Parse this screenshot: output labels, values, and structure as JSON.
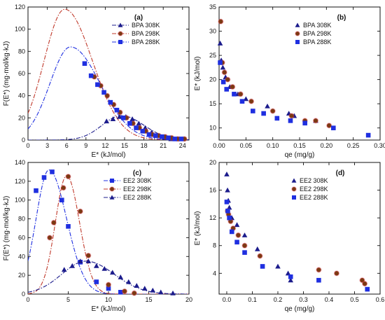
{
  "chart_data": [
    {
      "panel": "(a)",
      "type": "line",
      "xlabel": "E* (kJ/mol)",
      "ylabel": "F(E*) (mg·mol/kg·kJ)",
      "xlim": [
        0,
        25
      ],
      "ylim": [
        0,
        120
      ],
      "xticks": [
        0,
        3,
        6,
        9,
        12,
        15,
        18,
        21,
        24
      ],
      "yticks": [
        0,
        20,
        40,
        60,
        80,
        100,
        120
      ],
      "legend_position": "top-right",
      "series": [
        {
          "name": "BPA 308K",
          "marker": "triangle",
          "color": "#1c1c8c",
          "line_color": "#1c1c8c",
          "x": [
            12.2,
            13.2,
            14.2,
            15.2,
            16.2,
            17.2,
            18.2,
            19.2,
            20.2,
            21.2,
            22.2,
            23.2
          ],
          "y": [
            17,
            19,
            21,
            21,
            19,
            15,
            11,
            7,
            4,
            2,
            1,
            1
          ],
          "curve": {
            "peak": 22,
            "center": 14.5,
            "sigma_left": 3.0,
            "sigma_right": 3.5
          }
        },
        {
          "name": "BPA 298K",
          "marker": "circle",
          "color": "#7a3a12",
          "line_color": "#c0392b",
          "x": [
            10.3,
            11.3,
            12.3,
            13.3,
            14.3,
            15.3,
            16.3,
            17.3,
            18.3,
            19.3,
            20.3,
            21.3,
            22.3,
            23.3,
            24.3
          ],
          "y": [
            57,
            49,
            40,
            32,
            25,
            20,
            15,
            11,
            8,
            5,
            4,
            3,
            2,
            1,
            1
          ],
          "curve": {
            "peak": 118,
            "center": 5.7,
            "sigma_left": 3.2,
            "sigma_right": 4.3
          }
        },
        {
          "name": "BPA 288K",
          "marker": "square",
          "color": "#1f2fe0",
          "line_color": "#1f2fe0",
          "x": [
            8.8,
            9.8,
            10.8,
            11.8,
            12.8,
            13.8,
            14.8,
            15.8,
            16.8,
            17.8,
            18.8,
            19.8,
            20.8,
            21.8,
            22.8,
            23.8
          ],
          "y": [
            69,
            58,
            50,
            43,
            34,
            27,
            20,
            15,
            11,
            8,
            5,
            4,
            3,
            2,
            1,
            1
          ],
          "curve": {
            "peak": 84,
            "center": 6.6,
            "sigma_left": 3.2,
            "sigma_right": 4.6
          }
        }
      ]
    },
    {
      "panel": "(b)",
      "type": "scatter",
      "xlabel": "qe (mg/g)",
      "ylabel": "E* (kJ/mol)",
      "xlim": [
        0,
        0.3
      ],
      "ylim": [
        7.5,
        35
      ],
      "xticks": [
        0.0,
        0.05,
        0.1,
        0.15,
        0.2,
        0.25,
        0.3
      ],
      "xtick_labels": [
        "0.00",
        "0.05",
        "0.10",
        "0.15",
        "0.20",
        "0.25",
        "0.30"
      ],
      "yticks": [
        10,
        15,
        20,
        25,
        30,
        35
      ],
      "legend_position": "top-right",
      "series": [
        {
          "name": "BPA 308K",
          "marker": "triangle",
          "color": "#1c1c8c",
          "x": [
            0.002,
            0.004,
            0.007,
            0.012,
            0.02,
            0.035,
            0.05,
            0.09,
            0.13,
            0.14,
            0.18
          ],
          "y": [
            27.5,
            24,
            22.5,
            20.5,
            18.5,
            17,
            16,
            14.5,
            13,
            12.5,
            11.5
          ]
        },
        {
          "name": "BPA 298K",
          "marker": "circle",
          "color": "#7a3a12",
          "x": [
            0.003,
            0.006,
            0.01,
            0.016,
            0.025,
            0.04,
            0.06,
            0.1,
            0.135,
            0.16,
            0.18,
            0.205
          ],
          "y": [
            32,
            23.5,
            21.5,
            20,
            18.5,
            17,
            15.5,
            13.5,
            12.5,
            11.5,
            11.5,
            10.5
          ]
        },
        {
          "name": "BPA 288K",
          "marker": "square",
          "color": "#1f2fe0",
          "x": [
            0.002,
            0.008,
            0.014,
            0.028,
            0.043,
            0.063,
            0.083,
            0.108,
            0.133,
            0.16,
            0.213,
            0.278
          ],
          "y": [
            23.5,
            19.5,
            18,
            17,
            15.5,
            13.5,
            13,
            12,
            11.5,
            11,
            10,
            8.5
          ]
        }
      ]
    },
    {
      "panel": "(c)",
      "type": "line",
      "xlabel": "E* (kJ/mol)",
      "ylabel": "F(E*) (mg·mol/kg·kJ)",
      "xlim": [
        0,
        20
      ],
      "ylim": [
        0,
        140
      ],
      "xticks": [
        0,
        5,
        10,
        15,
        20
      ],
      "yticks": [
        0,
        20,
        40,
        60,
        80,
        100,
        120,
        140
      ],
      "legend_position": "top-right",
      "series": [
        {
          "name": "EE2 308K",
          "marker": "square",
          "color": "#1f2fe0",
          "line_color": "#1f2fe0",
          "x": [
            1.0,
            2.0,
            3.0,
            4.2,
            5.0,
            6.5,
            8.5,
            10.0,
            11.5
          ],
          "y": [
            110,
            124,
            130,
            100,
            72,
            34,
            13,
            6,
            2
          ],
          "curve": {
            "peak": 132,
            "center": 2.6,
            "sigma_left": 1.6,
            "sigma_right": 2.2
          }
        },
        {
          "name": "EE2 298K",
          "marker": "circle",
          "color": "#7a3a12",
          "line_color": "#c0392b",
          "x": [
            2.7,
            3.2,
            4.4,
            5.0,
            6.5,
            7.5,
            10.0,
            12.0,
            13.2
          ],
          "y": [
            60,
            76,
            113,
            125,
            88,
            41,
            10,
            3,
            1
          ],
          "curve": {
            "peak": 126,
            "center": 4.8,
            "sigma_left": 1.4,
            "sigma_right": 1.6
          }
        },
        {
          "name": "EE2 288K",
          "marker": "triangle",
          "color": "#1c1c8c",
          "line_color": "#1c1c8c",
          "x": [
            4.5,
            5.5,
            6.5,
            7.5,
            8.5,
            9.5,
            10.5,
            11.5,
            12.5,
            13.5,
            14.5,
            15.5,
            16.5,
            18.0
          ],
          "y": [
            26,
            30,
            35,
            35,
            30,
            27,
            23,
            18,
            13,
            9,
            6,
            4,
            2,
            1
          ],
          "curve": {
            "peak": 35,
            "center": 7.2,
            "sigma_left": 3.0,
            "sigma_right": 3.5
          }
        }
      ]
    },
    {
      "panel": "(d)",
      "type": "scatter",
      "xlabel": "qe (mg/g)",
      "ylabel": "E* (kJ/mol)",
      "xlim": [
        -0.03,
        0.6
      ],
      "ylim": [
        1,
        20
      ],
      "xticks": [
        0.0,
        0.1,
        0.2,
        0.3,
        0.4,
        0.5,
        0.6
      ],
      "xtick_labels": [
        "0.0",
        "0.1",
        "0.2",
        "0.3",
        "0.4",
        "0.5",
        "0.6"
      ],
      "yticks": [
        4,
        8,
        12,
        16,
        20
      ],
      "legend_position": "top-right",
      "series": [
        {
          "name": "EE2 308K",
          "marker": "triangle",
          "color": "#1c1c8c",
          "x": [
            0.0,
            0.003,
            0.006,
            0.01,
            0.02,
            0.04,
            0.07,
            0.12,
            0.2,
            0.24,
            0.25
          ],
          "y": [
            18.3,
            16,
            14.5,
            13.5,
            12,
            11,
            9.5,
            7.5,
            5,
            4,
            3
          ]
        },
        {
          "name": "EE2 298K",
          "marker": "circle",
          "color": "#7a3a12",
          "x": [
            0.003,
            0.007,
            0.015,
            0.025,
            0.045,
            0.07,
            0.13,
            0.36,
            0.43,
            0.53,
            0.54
          ],
          "y": [
            13,
            12.5,
            11.5,
            10.5,
            9.5,
            8,
            6.5,
            4.5,
            4,
            3,
            2.5
          ]
        },
        {
          "name": "EE2 288K",
          "marker": "square",
          "color": "#1f2fe0",
          "x": [
            0.0,
            0.004,
            0.01,
            0.02,
            0.04,
            0.07,
            0.14,
            0.25,
            0.36,
            0.55
          ],
          "y": [
            14.3,
            13,
            12,
            10,
            8.5,
            7,
            5,
            3.5,
            3,
            1.7
          ]
        }
      ]
    }
  ]
}
